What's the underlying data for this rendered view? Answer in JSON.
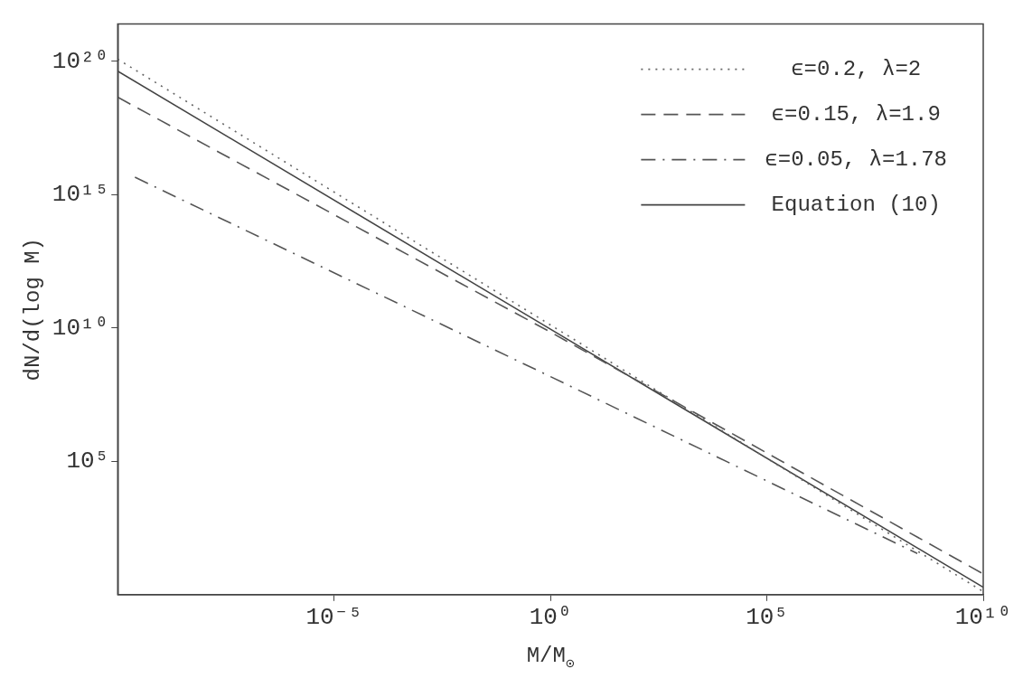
{
  "chart_data": {
    "type": "line",
    "xlabel": "M/M$_{⊙}$",
    "ylabel": "dN/d(log M)",
    "log": "xy",
    "xlim": [
      1e-10,
      10000000000.0
    ],
    "ylim": [
      1,
      2.5e+21
    ],
    "xticks": [
      {
        "value": 1e-05,
        "label": "10⁻⁵"
      },
      {
        "value": 1,
        "label": "10⁰"
      },
      {
        "value": 100000,
        "label": "10⁵"
      },
      {
        "value": 10000000000.0,
        "label": "10¹⁰"
      }
    ],
    "yticks": [
      {
        "value": 100000,
        "label": "10⁵"
      },
      {
        "value": 10000000000.0,
        "label": "10¹⁰"
      },
      {
        "value": 1000000000000000.0,
        "label": "10¹⁵"
      },
      {
        "value": 1e+20,
        "label": "10²⁰"
      }
    ],
    "grid": false,
    "legend": "top right",
    "marker": "none",
    "series": [
      {
        "name": "ϵ=0.2, λ=2",
        "color": "#666666",
        "line_style": "dotted",
        "x": [
          1e-10,
          1,
          10000000000.0
        ],
        "values": [
          1.2e+20,
          13000000000.0,
          1.3
        ]
      },
      {
        "name": "ϵ=0.15, λ=1.9",
        "color": "#555555",
        "line_style": "dashed",
        "x": [
          1e-10,
          1,
          10000000000.0
        ],
        "values": [
          4.5e+18,
          7000000000.0,
          6
        ]
      },
      {
        "name": "ϵ=0.05, λ=1.78",
        "color": "#555555",
        "line_style": "dashdot",
        "x": [
          2.5e-10,
          1,
          300000000.0
        ],
        "values": [
          4500000000000000.0,
          150000000.0,
          35
        ]
      },
      {
        "name": "Equation (10)",
        "color": "#444444",
        "line_style": "solid",
        "x": [
          1e-10,
          1,
          10000000000.0
        ],
        "values": [
          4.3e+19,
          9000000000.0,
          1.9
        ]
      }
    ]
  }
}
